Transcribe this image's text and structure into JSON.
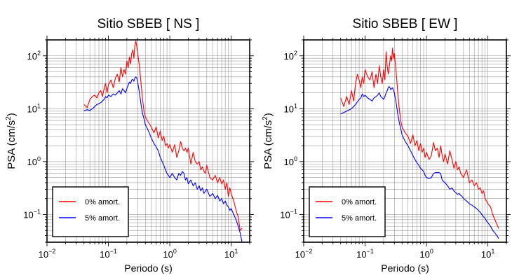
{
  "chart_data": [
    {
      "type": "line",
      "title": "Sitio SBEB [ NS ]",
      "xlabel": "Periodo (s)",
      "ylabel_main": "PSA (cm/s",
      "ylabel_sup": "2",
      "ylabel_tail": ")",
      "x_scale": "log",
      "y_scale": "log",
      "xlim": [
        0.01,
        20
      ],
      "ylim": [
        0.03,
        200
      ],
      "grid": true,
      "legend_position": "bottom-left",
      "x_tick_values": [
        0.01,
        0.1,
        1,
        10
      ],
      "x_ticks": [
        {
          "base": "10",
          "exp": "−2"
        },
        {
          "base": "10",
          "exp": "−1"
        },
        {
          "base": "10",
          "exp": "0"
        },
        {
          "base": "10",
          "exp": "1"
        }
      ],
      "y_tick_values": [
        0.1,
        1,
        10,
        100
      ],
      "y_ticks": [
        {
          "base": "10",
          "exp": "−1"
        },
        {
          "base": "10",
          "exp": "0"
        },
        {
          "base": "10",
          "exp": "1"
        },
        {
          "base": "10",
          "exp": "2"
        }
      ],
      "series": [
        {
          "name": "0% amort.",
          "color": "#ff0000",
          "x": [
            0.04,
            0.045,
            0.05,
            0.055,
            0.06,
            0.065,
            0.07,
            0.075,
            0.08,
            0.085,
            0.09,
            0.095,
            0.1,
            0.11,
            0.12,
            0.13,
            0.14,
            0.15,
            0.16,
            0.17,
            0.18,
            0.19,
            0.2,
            0.21,
            0.22,
            0.23,
            0.24,
            0.25,
            0.26,
            0.27,
            0.28,
            0.29,
            0.3,
            0.32,
            0.34,
            0.36,
            0.38,
            0.4,
            0.45,
            0.5,
            0.55,
            0.6,
            0.65,
            0.7,
            0.75,
            0.8,
            0.85,
            0.9,
            0.95,
            1.0,
            1.1,
            1.2,
            1.3,
            1.4,
            1.5,
            1.6,
            1.7,
            1.8,
            1.9,
            2.0,
            2.2,
            2.4,
            2.6,
            2.8,
            3.0,
            3.2,
            3.4,
            3.6,
            3.8,
            4.0,
            4.5,
            5.0,
            5.5,
            6.0,
            6.5,
            7.0,
            7.5,
            8.0,
            8.5,
            9.0,
            9.5,
            10,
            11,
            12,
            13,
            14,
            15
          ],
          "y": [
            12,
            10.5,
            15,
            17,
            18,
            16,
            20,
            22,
            17,
            24,
            30,
            20,
            28,
            35,
            25,
            38,
            45,
            32,
            60,
            40,
            55,
            45,
            80,
            60,
            95,
            70,
            110,
            130,
            90,
            160,
            190,
            150,
            110,
            65,
            30,
            15,
            9,
            7,
            5.5,
            4.5,
            3.5,
            4.5,
            2.8,
            3.8,
            2.5,
            3,
            2,
            2.2,
            1.8,
            2.1,
            1.5,
            2.1,
            1.2,
            1.6,
            2.4,
            1.8,
            1.6,
            1.8,
            1.5,
            1.8,
            0.9,
            1.5,
            1.0,
            0.9,
            1.0,
            0.7,
            0.8,
            0.65,
            0.6,
            0.85,
            0.5,
            0.45,
            0.55,
            0.4,
            0.5,
            0.38,
            0.45,
            0.3,
            0.4,
            0.22,
            0.32,
            0.25,
            0.18,
            0.12,
            0.09,
            0.05,
            0.055
          ]
        },
        {
          "name": "5% amort.",
          "color": "#0000ff",
          "x": [
            0.04,
            0.045,
            0.05,
            0.055,
            0.06,
            0.065,
            0.07,
            0.075,
            0.08,
            0.085,
            0.09,
            0.095,
            0.1,
            0.11,
            0.12,
            0.13,
            0.14,
            0.15,
            0.16,
            0.17,
            0.18,
            0.19,
            0.2,
            0.21,
            0.22,
            0.23,
            0.24,
            0.25,
            0.26,
            0.27,
            0.28,
            0.29,
            0.3,
            0.32,
            0.34,
            0.36,
            0.38,
            0.4,
            0.45,
            0.5,
            0.55,
            0.6,
            0.65,
            0.7,
            0.75,
            0.8,
            0.85,
            0.9,
            0.95,
            1.0,
            1.1,
            1.2,
            1.3,
            1.4,
            1.5,
            1.6,
            1.7,
            1.8,
            1.9,
            2.0,
            2.2,
            2.4,
            2.6,
            2.8,
            3.0,
            3.2,
            3.4,
            3.6,
            3.8,
            4.0,
            4.5,
            5.0,
            5.5,
            6.0,
            6.5,
            7.0,
            7.5,
            8.0,
            8.5,
            9.0,
            9.5,
            10,
            11,
            12,
            13,
            14,
            15
          ],
          "y": [
            9.2,
            9.6,
            9.3,
            10,
            11,
            12,
            12.5,
            13,
            14,
            15,
            17,
            16,
            18,
            17,
            19,
            18,
            20,
            22,
            19,
            24,
            22,
            20,
            24,
            28,
            32,
            30,
            35,
            36,
            33,
            38,
            40,
            38,
            32,
            20,
            12,
            8,
            6.5,
            5,
            3.8,
            2.8,
            2.2,
            1.9,
            1.6,
            1.2,
            1.0,
            0.85,
            0.7,
            0.6,
            0.55,
            0.5,
            0.6,
            0.5,
            0.45,
            0.6,
            0.55,
            0.65,
            0.6,
            0.45,
            0.5,
            0.38,
            0.45,
            0.35,
            0.4,
            0.3,
            0.35,
            0.28,
            0.32,
            0.25,
            0.28,
            0.3,
            0.22,
            0.25,
            0.2,
            0.23,
            0.18,
            0.2,
            0.16,
            0.18,
            0.15,
            0.14,
            0.12,
            0.13,
            0.1,
            0.08,
            0.06,
            0.045,
            0.03
          ]
        }
      ]
    },
    {
      "type": "line",
      "title": "Sitio SBEB [ EW ]",
      "xlabel": "Periodo (s)",
      "ylabel_main": "PSA (cm/s",
      "ylabel_sup": "2",
      "ylabel_tail": ")",
      "x_scale": "log",
      "y_scale": "log",
      "xlim": [
        0.01,
        20
      ],
      "ylim": [
        0.03,
        200
      ],
      "grid": true,
      "legend_position": "bottom-left",
      "x_tick_values": [
        0.01,
        0.1,
        1,
        10
      ],
      "x_ticks": [
        {
          "base": "10",
          "exp": "−2"
        },
        {
          "base": "10",
          "exp": "−1"
        },
        {
          "base": "10",
          "exp": "0"
        },
        {
          "base": "10",
          "exp": "1"
        }
      ],
      "y_tick_values": [
        0.1,
        1,
        10,
        100
      ],
      "y_ticks": [
        {
          "base": "10",
          "exp": "−1"
        },
        {
          "base": "10",
          "exp": "0"
        },
        {
          "base": "10",
          "exp": "1"
        },
        {
          "base": "10",
          "exp": "2"
        }
      ],
      "series": [
        {
          "name": "0% amort.",
          "color": "#ff0000",
          "x": [
            0.04,
            0.045,
            0.05,
            0.055,
            0.06,
            0.065,
            0.07,
            0.075,
            0.08,
            0.085,
            0.09,
            0.095,
            0.1,
            0.11,
            0.12,
            0.13,
            0.14,
            0.15,
            0.16,
            0.17,
            0.18,
            0.19,
            0.2,
            0.21,
            0.22,
            0.23,
            0.24,
            0.25,
            0.26,
            0.27,
            0.28,
            0.29,
            0.3,
            0.32,
            0.34,
            0.36,
            0.38,
            0.4,
            0.45,
            0.5,
            0.55,
            0.6,
            0.65,
            0.7,
            0.75,
            0.8,
            0.85,
            0.9,
            0.95,
            1.0,
            1.1,
            1.2,
            1.3,
            1.4,
            1.5,
            1.6,
            1.7,
            1.8,
            1.9,
            2.0,
            2.2,
            2.4,
            2.6,
            2.8,
            3.0,
            3.2,
            3.4,
            3.6,
            3.8,
            4.0,
            4.5,
            5.0,
            5.5,
            6.0,
            6.5,
            7.0,
            7.5,
            8.0,
            8.5,
            9.0,
            9.5,
            10,
            11,
            12,
            13,
            14,
            15
          ],
          "y": [
            16,
            11,
            17,
            12,
            22,
            14,
            30,
            45,
            35,
            25,
            40,
            30,
            55,
            40,
            35,
            50,
            25,
            45,
            30,
            65,
            40,
            30,
            55,
            35,
            120,
            60,
            45,
            70,
            100,
            80,
            140,
            90,
            110,
            50,
            20,
            10,
            6,
            4.5,
            3.5,
            3,
            2.2,
            3.2,
            2.0,
            2.5,
            1.6,
            2.2,
            1.5,
            1.8,
            1.2,
            1.5,
            1.1,
            1.3,
            2.3,
            1.6,
            1.8,
            1.2,
            2.0,
            1.3,
            1.0,
            1.4,
            0.9,
            1.6,
            1.1,
            0.75,
            1.0,
            0.7,
            0.8,
            0.6,
            0.55,
            0.5,
            0.7,
            0.4,
            0.45,
            0.35,
            0.4,
            0.3,
            0.32,
            0.25,
            0.28,
            0.2,
            0.18,
            0.16,
            0.14,
            0.1,
            0.08,
            0.065,
            0.055
          ]
        },
        {
          "name": "5% amort.",
          "color": "#0000ff",
          "x": [
            0.04,
            0.045,
            0.05,
            0.055,
            0.06,
            0.065,
            0.07,
            0.075,
            0.08,
            0.085,
            0.09,
            0.095,
            0.1,
            0.11,
            0.12,
            0.13,
            0.14,
            0.15,
            0.16,
            0.17,
            0.18,
            0.19,
            0.2,
            0.21,
            0.22,
            0.23,
            0.24,
            0.25,
            0.26,
            0.27,
            0.28,
            0.29,
            0.3,
            0.32,
            0.34,
            0.36,
            0.38,
            0.4,
            0.45,
            0.5,
            0.55,
            0.6,
            0.65,
            0.7,
            0.75,
            0.8,
            0.85,
            0.9,
            0.95,
            1.0,
            1.1,
            1.2,
            1.3,
            1.4,
            1.5,
            1.6,
            1.7,
            1.8,
            1.9,
            2.0,
            2.2,
            2.4,
            2.6,
            2.8,
            3.0,
            3.2,
            3.4,
            3.6,
            3.8,
            4.0,
            4.5,
            5.0,
            5.5,
            6.0,
            6.5,
            7.0,
            7.5,
            8.0,
            8.5,
            9.0,
            9.5,
            10,
            11,
            12,
            13,
            14,
            15
          ],
          "y": [
            8,
            8.5,
            9,
            9.5,
            10,
            11,
            12,
            13.5,
            15,
            16,
            19,
            17,
            18,
            16,
            15,
            14,
            16,
            17,
            18,
            20,
            17,
            16,
            15,
            17,
            20,
            22,
            26,
            26,
            23,
            24,
            25,
            22,
            20,
            13,
            8,
            5.5,
            4.2,
            3.2,
            2.4,
            2.0,
            1.6,
            1.3,
            1.1,
            0.95,
            0.85,
            0.75,
            0.7,
            0.65,
            0.55,
            0.5,
            0.48,
            0.5,
            0.6,
            0.62,
            0.62,
            0.62,
            0.6,
            0.45,
            0.42,
            0.4,
            0.35,
            0.3,
            0.32,
            0.28,
            0.26,
            0.24,
            0.25,
            0.23,
            0.22,
            0.2,
            0.18,
            0.16,
            0.15,
            0.14,
            0.13,
            0.12,
            0.11,
            0.1,
            0.09,
            0.085,
            0.075,
            0.07,
            0.06,
            0.05,
            0.045,
            0.04,
            0.035
          ]
        }
      ]
    }
  ]
}
